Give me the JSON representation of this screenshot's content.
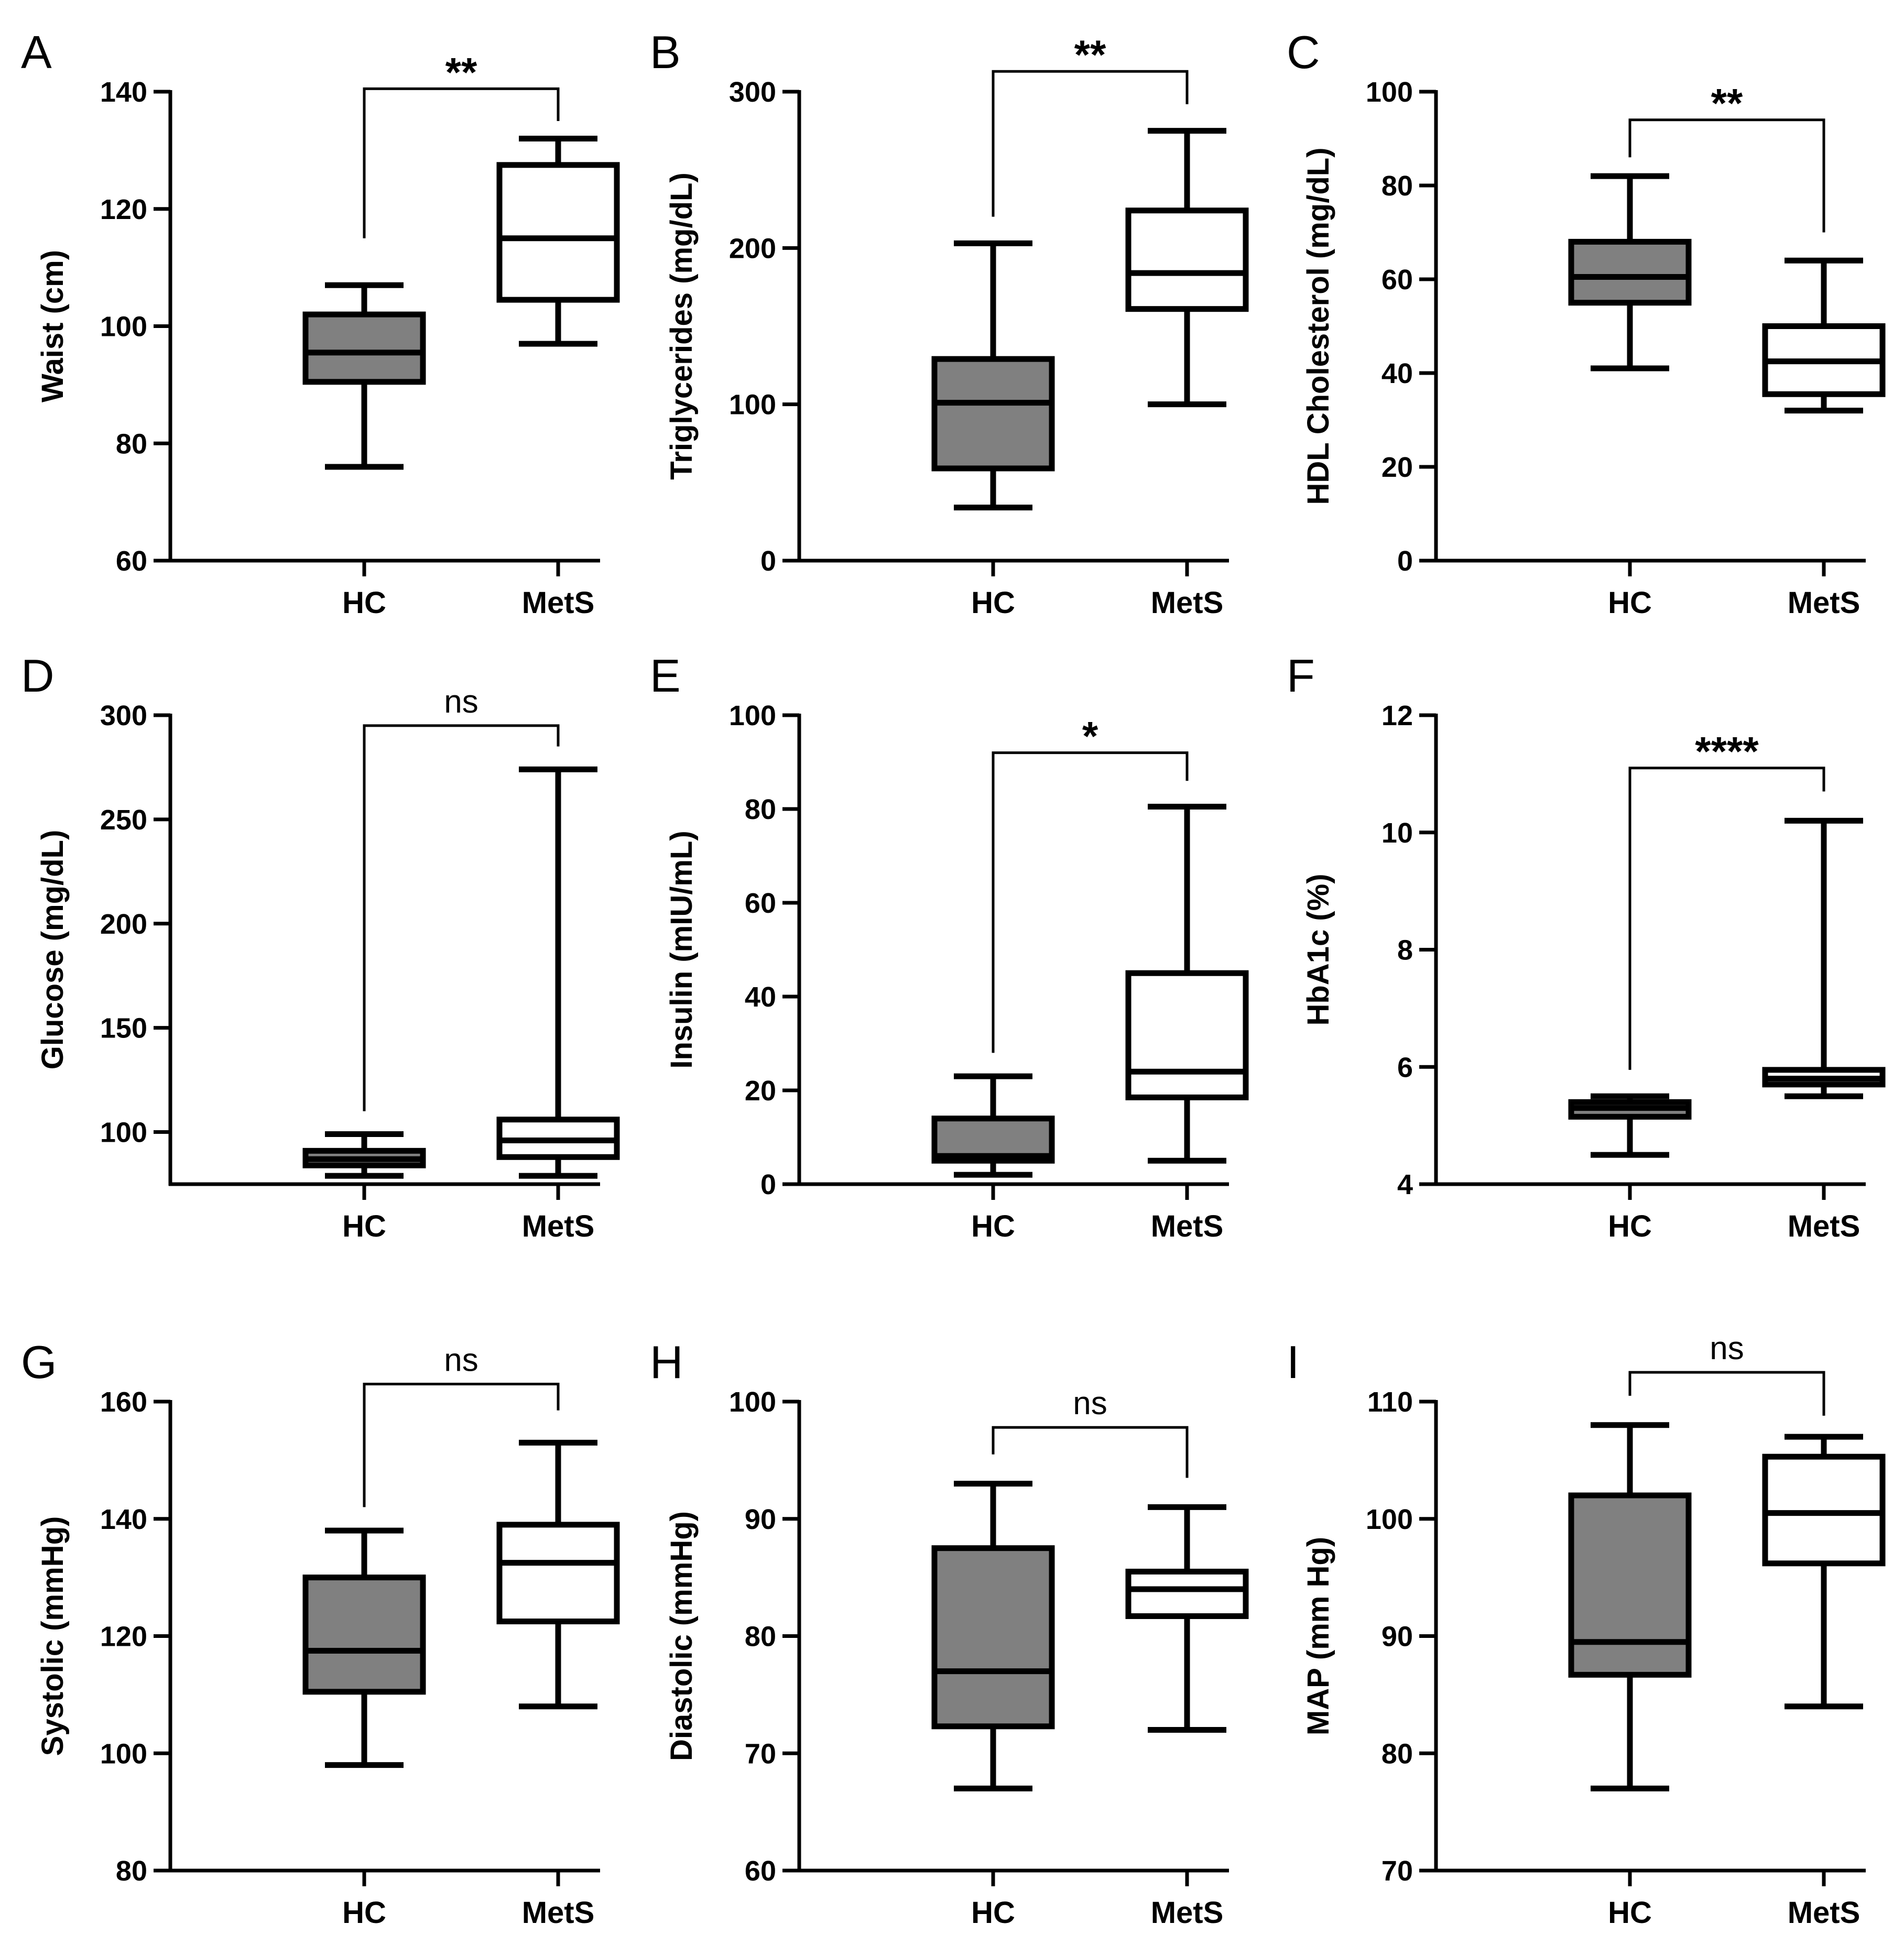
{
  "chart_data": [
    {
      "type": "box",
      "panel": "A",
      "ylabel": "Waist (cm)",
      "ylim": [
        60,
        140
      ],
      "yticks": [
        60,
        80,
        100,
        120,
        140
      ],
      "yticklabels": [
        "60",
        "80",
        "100",
        "120",
        "140"
      ],
      "categories": [
        "HC",
        "MetS"
      ],
      "boxes": [
        {
          "group": "HC",
          "min": 76,
          "q1": 90.5,
          "median": 95.5,
          "q3": 102,
          "max": 107,
          "fill": "#808080"
        },
        {
          "group": "MetS",
          "min": 97,
          "q1": 104.5,
          "median": 115,
          "q3": 127.5,
          "max": 132,
          "fill": "#ffffff"
        }
      ],
      "significance": "**",
      "bracket_y": 140.5,
      "bracket_hc_end": 115,
      "bracket_mets_end": 135
    },
    {
      "type": "box",
      "panel": "B",
      "ylabel": "Triglycerides (mg/dL)",
      "ylim": [
        0,
        300
      ],
      "yticks": [
        0,
        100,
        200,
        300
      ],
      "yticklabels": [
        "0",
        "100",
        "200",
        "300"
      ],
      "categories": [
        "HC",
        "MetS"
      ],
      "boxes": [
        {
          "group": "HC",
          "min": 34,
          "q1": 59,
          "median": 101,
          "q3": 129,
          "max": 203,
          "fill": "#808080"
        },
        {
          "group": "MetS",
          "min": 100,
          "q1": 161,
          "median": 184,
          "q3": 224,
          "max": 275,
          "fill": "#ffffff"
        }
      ],
      "significance": "**",
      "bracket_y": 313,
      "bracket_hc_end": 220,
      "bracket_mets_end": 292
    },
    {
      "type": "box",
      "panel": "C",
      "ylabel": "HDL Cholesterol (mg/dL)",
      "ylim": [
        0,
        100
      ],
      "yticks": [
        0,
        20,
        40,
        60,
        80,
        100
      ],
      "yticklabels": [
        "0",
        "20",
        "40",
        "60",
        "80",
        "100"
      ],
      "categories": [
        "HC",
        "MetS"
      ],
      "boxes": [
        {
          "group": "HC",
          "min": 41,
          "q1": 55,
          "median": 60.5,
          "q3": 68,
          "max": 82,
          "fill": "#808080"
        },
        {
          "group": "MetS",
          "min": 32,
          "q1": 35.5,
          "median": 42.5,
          "q3": 50,
          "max": 64,
          "fill": "#ffffff"
        }
      ],
      "significance": "**",
      "bracket_y": 94,
      "bracket_hc_end": 86,
      "bracket_mets_end": 70
    },
    {
      "type": "box",
      "panel": "D",
      "ylabel": "Glucose (mg/dL)",
      "ylim": [
        75,
        300
      ],
      "yticks": [
        100,
        150,
        200,
        250,
        300
      ],
      "yticklabels": [
        "100",
        "150",
        "200",
        "250",
        "300"
      ],
      "categories": [
        "HC",
        "MetS"
      ],
      "boxes": [
        {
          "group": "HC",
          "min": 79,
          "q1": 84,
          "median": 87,
          "q3": 91,
          "max": 99,
          "fill": "#808080"
        },
        {
          "group": "MetS",
          "min": 79,
          "q1": 88,
          "median": 96,
          "q3": 106,
          "max": 274,
          "fill": "#ffffff"
        }
      ],
      "significance": "ns",
      "bracket_y": 295,
      "bracket_hc_end": 110,
      "bracket_mets_end": 285
    },
    {
      "type": "box",
      "panel": "E",
      "ylabel": "Insulin (mIU/mL)",
      "ylim": [
        0,
        100
      ],
      "yticks": [
        0,
        20,
        40,
        60,
        80,
        100
      ],
      "yticklabels": [
        "0",
        "20",
        "40",
        "60",
        "80",
        "100"
      ],
      "categories": [
        "HC",
        "MetS"
      ],
      "boxes": [
        {
          "group": "HC",
          "min": 2,
          "q1": 5,
          "median": 6,
          "q3": 14,
          "max": 23,
          "fill": "#808080"
        },
        {
          "group": "MetS",
          "min": 5,
          "q1": 18.5,
          "median": 24,
          "q3": 45,
          "max": 80.5,
          "fill": "#ffffff"
        }
      ],
      "significance": "*",
      "bracket_y": 92,
      "bracket_hc_end": 28,
      "bracket_mets_end": 86
    },
    {
      "type": "box",
      "panel": "F",
      "ylabel": "HbA1c (%)",
      "ylim": [
        4,
        12
      ],
      "yticks": [
        4,
        6,
        8,
        10,
        12
      ],
      "yticklabels": [
        "4",
        "6",
        "8",
        "10",
        "12"
      ],
      "categories": [
        "HC",
        "MetS"
      ],
      "boxes": [
        {
          "group": "HC",
          "min": 4.5,
          "q1": 5.15,
          "median": 5.3,
          "q3": 5.4,
          "max": 5.5,
          "fill": "#808080"
        },
        {
          "group": "MetS",
          "min": 5.5,
          "q1": 5.7,
          "median": 5.8,
          "q3": 5.95,
          "max": 10.2,
          "fill": "#ffffff"
        }
      ],
      "significance": "****",
      "bracket_y": 11.1,
      "bracket_hc_end": 5.95,
      "bracket_mets_end": 10.7
    },
    {
      "type": "box",
      "panel": "G",
      "ylabel": "Systolic (mmHg)",
      "ylim": [
        80,
        160
      ],
      "yticks": [
        80,
        100,
        120,
        140,
        160
      ],
      "yticklabels": [
        "80",
        "100",
        "120",
        "140",
        "160"
      ],
      "categories": [
        "HC",
        "MetS"
      ],
      "boxes": [
        {
          "group": "HC",
          "min": 98,
          "q1": 110.5,
          "median": 117.5,
          "q3": 130,
          "max": 138,
          "fill": "#808080"
        },
        {
          "group": "MetS",
          "min": 108,
          "q1": 122.5,
          "median": 132.5,
          "q3": 139,
          "max": 153,
          "fill": "#ffffff"
        }
      ],
      "significance": "ns",
      "bracket_y": 163,
      "bracket_hc_end": 142,
      "bracket_mets_end": 158.5
    },
    {
      "type": "box",
      "panel": "H",
      "ylabel": "Diastolic (mmHg)",
      "ylim": [
        60,
        100
      ],
      "yticks": [
        60,
        70,
        80,
        90,
        100
      ],
      "yticklabels": [
        "60",
        "70",
        "80",
        "90",
        "100"
      ],
      "categories": [
        "HC",
        "MetS"
      ],
      "boxes": [
        {
          "group": "HC",
          "min": 67,
          "q1": 72.3,
          "median": 77,
          "q3": 87.5,
          "max": 93,
          "fill": "#808080"
        },
        {
          "group": "MetS",
          "min": 72,
          "q1": 81.7,
          "median": 84,
          "q3": 85.5,
          "max": 91,
          "fill": "#ffffff"
        }
      ],
      "significance": "ns",
      "bracket_y": 97.8,
      "bracket_hc_end": 95.5,
      "bracket_mets_end": 93.5
    },
    {
      "type": "box",
      "panel": "I",
      "ylabel": "MAP (mm Hg)",
      "ylim": [
        70,
        110
      ],
      "yticks": [
        70,
        80,
        90,
        100,
        110
      ],
      "yticklabels": [
        "70",
        "80",
        "90",
        "100",
        "110"
      ],
      "categories": [
        "HC",
        "MetS"
      ],
      "boxes": [
        {
          "group": "HC",
          "min": 77,
          "q1": 86.7,
          "median": 89.5,
          "q3": 102,
          "max": 108,
          "fill": "#808080"
        },
        {
          "group": "MetS",
          "min": 84,
          "q1": 96.2,
          "median": 100.5,
          "q3": 105.3,
          "max": 107,
          "fill": "#ffffff"
        }
      ],
      "significance": "ns",
      "bracket_y": 112.5,
      "bracket_hc_end": 110.5,
      "bracket_mets_end": 108.8
    }
  ]
}
